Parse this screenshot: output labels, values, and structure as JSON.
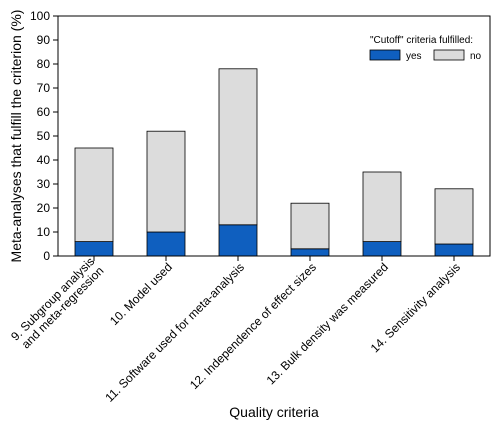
{
  "chart_data": {
    "type": "bar",
    "stacked": true,
    "xlabel": "Quality criteria",
    "ylabel": "Meta-analyses that fulfill the criterion (%)",
    "ylim": [
      0,
      100
    ],
    "yticks": [
      0,
      10,
      20,
      30,
      40,
      50,
      60,
      70,
      80,
      90,
      100
    ],
    "grid": false,
    "legend": {
      "title": "\"Cutoff\" criteria fulfilled:",
      "placement": "top-right"
    },
    "categories": [
      [
        "9. Subgroup analysis",
        "and meta-regression"
      ],
      [
        "10. Model used"
      ],
      [
        "11. Software used for meta-analysis"
      ],
      [
        "12. Independence of effect sizes"
      ],
      [
        "13. Bulk density was measured"
      ],
      [
        "14. Sensitivity analysis"
      ]
    ],
    "series": [
      {
        "name": "yes",
        "color": "#0f5fbf",
        "values": [
          6,
          10,
          13,
          3,
          6,
          5
        ]
      },
      {
        "name": "no",
        "color": "#dcdcdc",
        "values": [
          39,
          42,
          65,
          19,
          29,
          23
        ]
      }
    ]
  }
}
